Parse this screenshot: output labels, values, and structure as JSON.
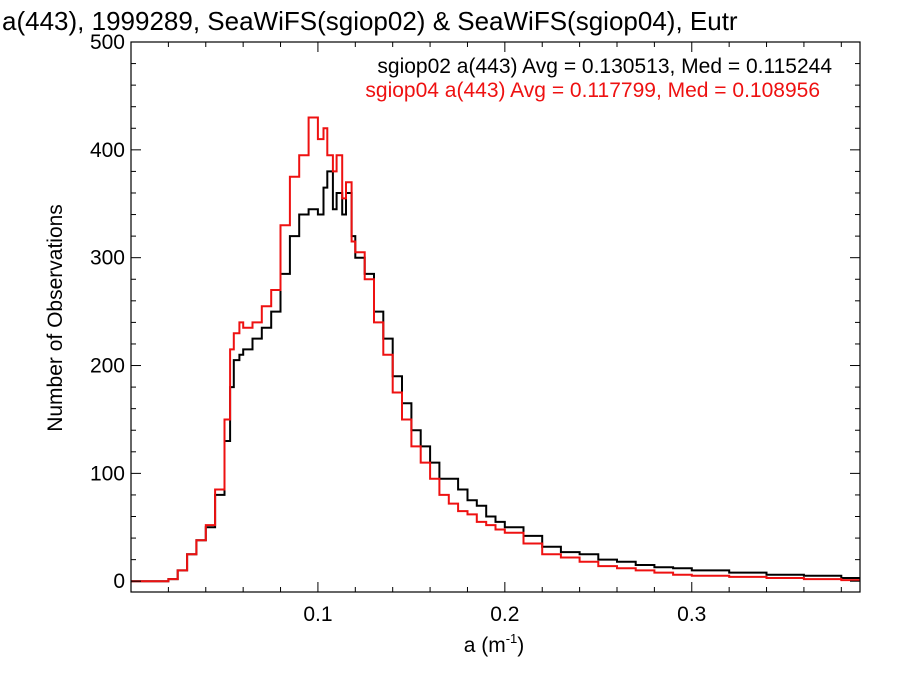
{
  "chart_data": {
    "type": "line",
    "title": "a(443), 1999289, SeaWiFS(sgiop02) & SeaWiFS(sgiop04), Eutr",
    "xlabel": "a (m",
    "xlabel_sup": "-1",
    "xlabel_close": ")",
    "ylabel": "Number of Observations",
    "xlim": [
      0.0,
      0.39
    ],
    "ylim": [
      -10,
      500
    ],
    "xticks": [
      0.1,
      0.2,
      0.3
    ],
    "xtick_labels": [
      "0.1",
      "0.2",
      "0.3"
    ],
    "yticks": [
      0,
      100,
      200,
      300,
      400,
      500
    ],
    "ytick_labels": [
      "0",
      "100",
      "200",
      "300",
      "400",
      "500"
    ],
    "grid": false,
    "legend_position": "top-right",
    "step_style": "histogram",
    "series": [
      {
        "name": "sgiop02 a(443) Avg = 0.130513, Med = 0.115244",
        "color": "#000000",
        "x": [
          0.0,
          0.017,
          0.02,
          0.025,
          0.03,
          0.035,
          0.04,
          0.045,
          0.05,
          0.053,
          0.055,
          0.058,
          0.06,
          0.065,
          0.07,
          0.075,
          0.08,
          0.085,
          0.09,
          0.095,
          0.1,
          0.103,
          0.105,
          0.108,
          0.11,
          0.113,
          0.115,
          0.118,
          0.12,
          0.125,
          0.13,
          0.135,
          0.14,
          0.145,
          0.15,
          0.155,
          0.16,
          0.165,
          0.17,
          0.175,
          0.18,
          0.185,
          0.19,
          0.195,
          0.2,
          0.21,
          0.22,
          0.23,
          0.24,
          0.25,
          0.26,
          0.27,
          0.28,
          0.29,
          0.3,
          0.32,
          0.34,
          0.36,
          0.38,
          0.39
        ],
        "values": [
          0,
          0,
          2,
          10,
          25,
          38,
          50,
          80,
          130,
          180,
          205,
          210,
          215,
          225,
          235,
          250,
          285,
          320,
          340,
          345,
          340,
          365,
          380,
          345,
          360,
          340,
          360,
          320,
          300,
          285,
          250,
          225,
          190,
          165,
          140,
          125,
          110,
          95,
          95,
          85,
          75,
          70,
          60,
          55,
          50,
          42,
          32,
          27,
          25,
          20,
          18,
          15,
          13,
          12,
          10,
          8,
          6,
          5,
          3,
          3
        ]
      },
      {
        "name": "sgiop04 a(443) Avg = 0.117799, Med = 0.108956",
        "color": "#ee1111",
        "x": [
          0.0,
          0.017,
          0.02,
          0.025,
          0.03,
          0.035,
          0.04,
          0.045,
          0.05,
          0.053,
          0.055,
          0.058,
          0.06,
          0.065,
          0.07,
          0.075,
          0.08,
          0.085,
          0.09,
          0.095,
          0.1,
          0.103,
          0.105,
          0.108,
          0.11,
          0.113,
          0.115,
          0.118,
          0.12,
          0.125,
          0.13,
          0.135,
          0.14,
          0.145,
          0.15,
          0.155,
          0.16,
          0.165,
          0.17,
          0.175,
          0.18,
          0.185,
          0.19,
          0.195,
          0.2,
          0.21,
          0.22,
          0.23,
          0.24,
          0.25,
          0.26,
          0.27,
          0.28,
          0.29,
          0.3,
          0.32,
          0.34,
          0.36,
          0.38,
          0.39
        ],
        "values": [
          0,
          0,
          2,
          10,
          25,
          38,
          52,
          85,
          150,
          215,
          230,
          240,
          235,
          240,
          255,
          270,
          330,
          375,
          395,
          430,
          410,
          420,
          395,
          380,
          395,
          355,
          370,
          315,
          305,
          280,
          240,
          210,
          175,
          150,
          125,
          110,
          95,
          80,
          72,
          65,
          62,
          55,
          52,
          48,
          45,
          35,
          25,
          22,
          18,
          14,
          12,
          10,
          8,
          6,
          5,
          4,
          3,
          2,
          1,
          1
        ]
      }
    ]
  }
}
